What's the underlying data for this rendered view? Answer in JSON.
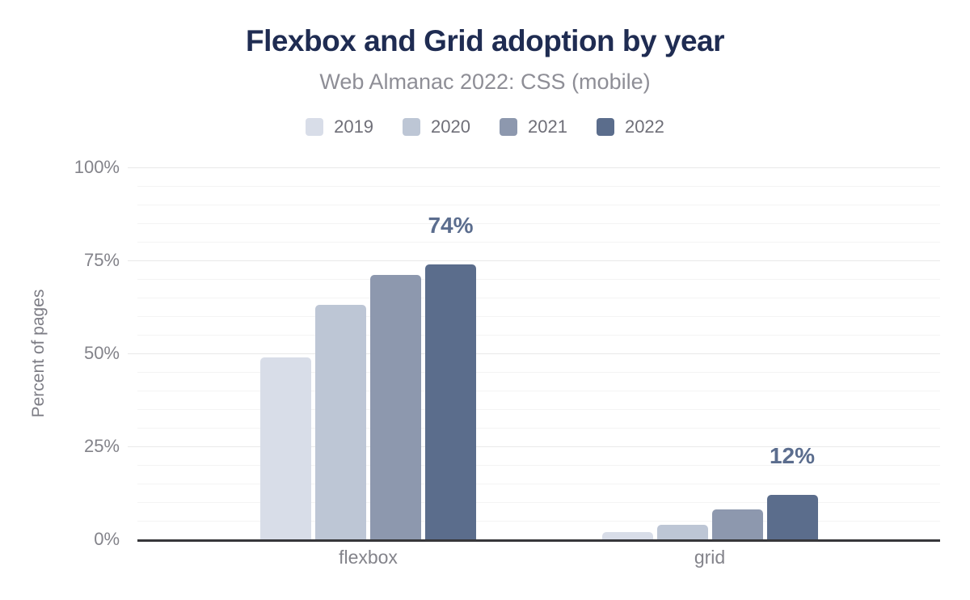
{
  "chart": {
    "title": "Flexbox and Grid adoption by year",
    "subtitle": "Web Almanac 2022: CSS (mobile)",
    "ylabel": "Percent of pages"
  },
  "chart_data": {
    "type": "bar",
    "title": "Flexbox and Grid adoption by year",
    "subtitle": "Web Almanac 2022: CSS (mobile)",
    "categories": [
      "flexbox",
      "grid"
    ],
    "series": [
      {
        "name": "2019",
        "color": "#d8dde8",
        "values": [
          49,
          2
        ]
      },
      {
        "name": "2020",
        "color": "#bdc6d5",
        "values": [
          63,
          4
        ]
      },
      {
        "name": "2021",
        "color": "#8d98ae",
        "values": [
          71,
          8
        ]
      },
      {
        "name": "2022",
        "color": "#5b6d8c",
        "values": [
          74,
          12
        ]
      }
    ],
    "annotations": [
      {
        "category": "flexbox",
        "series": "2022",
        "text": "74%"
      },
      {
        "category": "grid",
        "series": "2022",
        "text": "12%"
      }
    ],
    "xlabel": "",
    "ylabel": "Percent of pages",
    "ylim": [
      0,
      100
    ],
    "yticks": [
      0,
      25,
      50,
      75,
      100
    ],
    "ytick_suffix": "%",
    "minor_grid_step": 5,
    "grid": "horizontal",
    "legend_position": "top"
  },
  "colors": {
    "title": "#1f2c52",
    "subtitle": "#8e8e96",
    "axis_text": "#83838a",
    "legend_text": "#6f6f78",
    "data_label": "#5b6d8e",
    "axis_line": "#37373a",
    "gridline_minor": "#f4f4f4",
    "gridline_major": "#e9e9e9"
  }
}
